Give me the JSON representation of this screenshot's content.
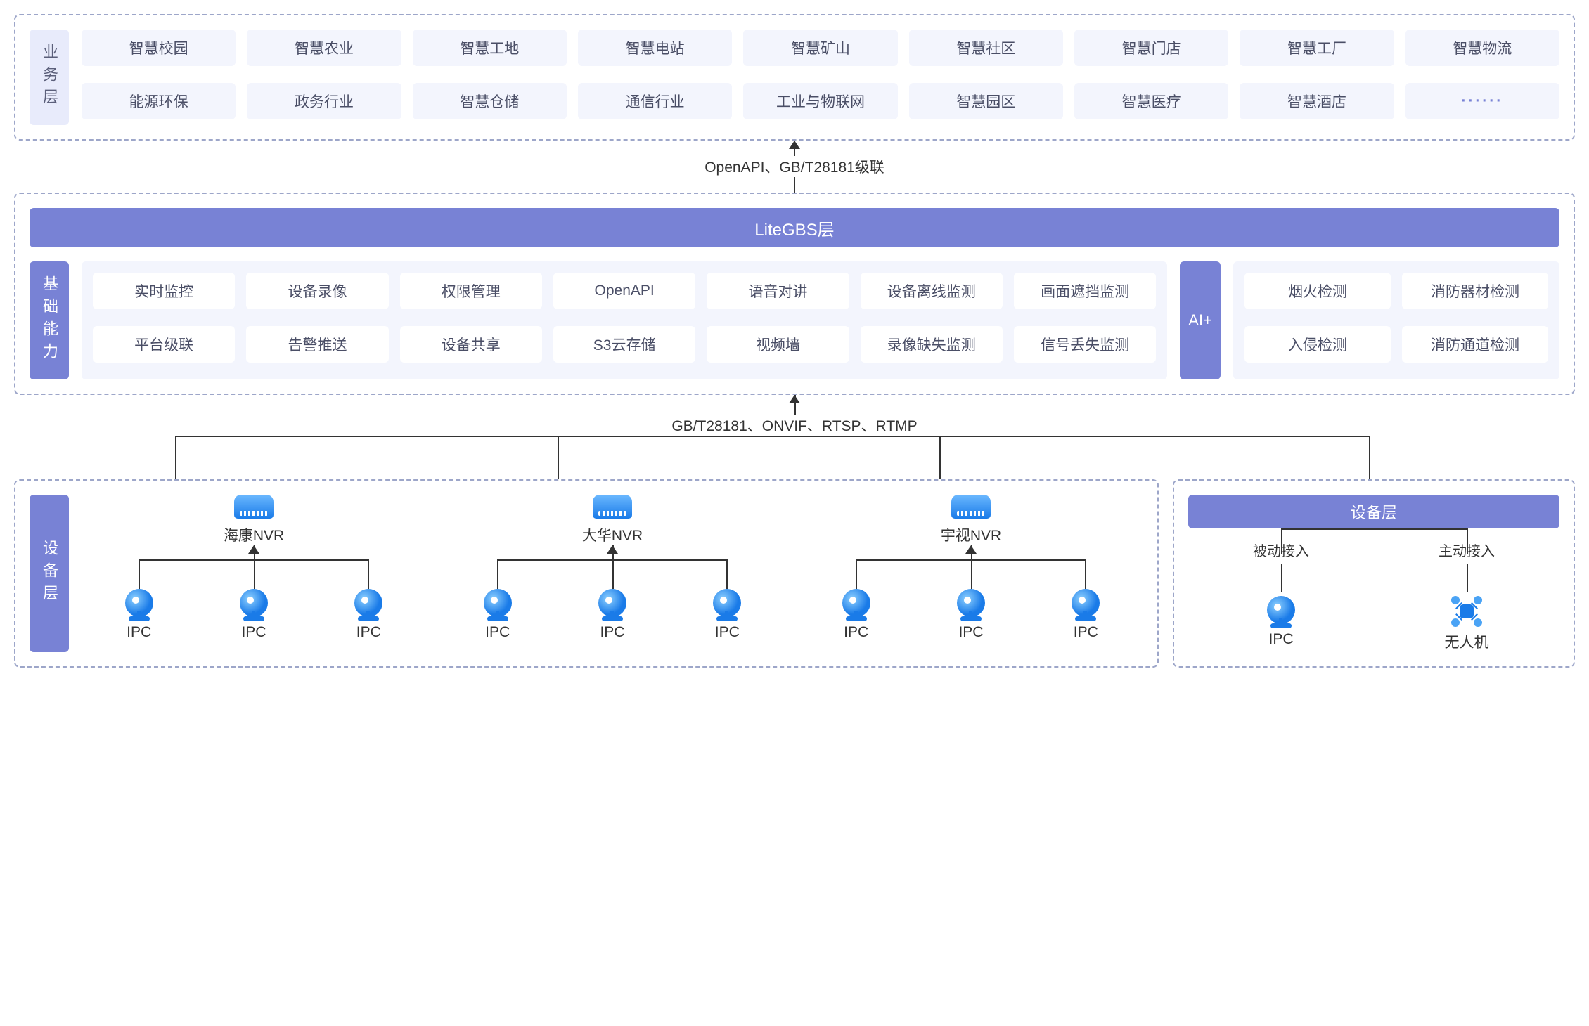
{
  "colors": {
    "accent": "#7882d5",
    "light": "#e8ebfb",
    "tag": "#f3f5fd",
    "border": "#9da6c9",
    "text": "#4a4e66",
    "blue1": "#1a7be8",
    "blue2": "#6bb8ff"
  },
  "layers": {
    "business": {
      "label": "业务层",
      "items": [
        "智慧校园",
        "智慧农业",
        "智慧工地",
        "智慧电站",
        "智慧矿山",
        "智慧社区",
        "智慧门店",
        "智慧工厂",
        "智慧物流",
        "能源环保",
        "政务行业",
        "智慧仓储",
        "通信行业",
        "工业与物联网",
        "智慧园区",
        "智慧医疗",
        "智慧酒店",
        "······"
      ]
    },
    "connector_top": "OpenAPI、GB/T28181级联",
    "litegbs": {
      "title": "LiteGBS层",
      "basic_label": "基础能力",
      "basic_items": [
        "实时监控",
        "设备录像",
        "权限管理",
        "OpenAPI",
        "语音对讲",
        "设备离线监测",
        "画面遮挡监测",
        "平台级联",
        "告警推送",
        "设备共享",
        "S3云存储",
        "视频墙",
        "录像缺失监测",
        "信号丢失监测"
      ],
      "ai_label": "AI+",
      "ai_items": [
        "烟火检测",
        "消防器材检测",
        "入侵检测",
        "消防通道检测"
      ]
    },
    "connector_mid": "GB/T28181、ONVIF、RTSP、RTMP",
    "device": {
      "label": "设备层",
      "nvrs": [
        {
          "name": "海康NVR",
          "ipcs": [
            "IPC",
            "IPC",
            "IPC"
          ]
        },
        {
          "name": "大华NVR",
          "ipcs": [
            "IPC",
            "IPC",
            "IPC"
          ]
        },
        {
          "name": "宇视NVR",
          "ipcs": [
            "IPC",
            "IPC",
            "IPC"
          ]
        }
      ],
      "right": {
        "title": "设备层",
        "cols": [
          {
            "mode": "被动接入",
            "device": "IPC",
            "icon": "ipc"
          },
          {
            "mode": "主动接入",
            "device": "无人机",
            "icon": "drone"
          }
        ]
      }
    }
  }
}
